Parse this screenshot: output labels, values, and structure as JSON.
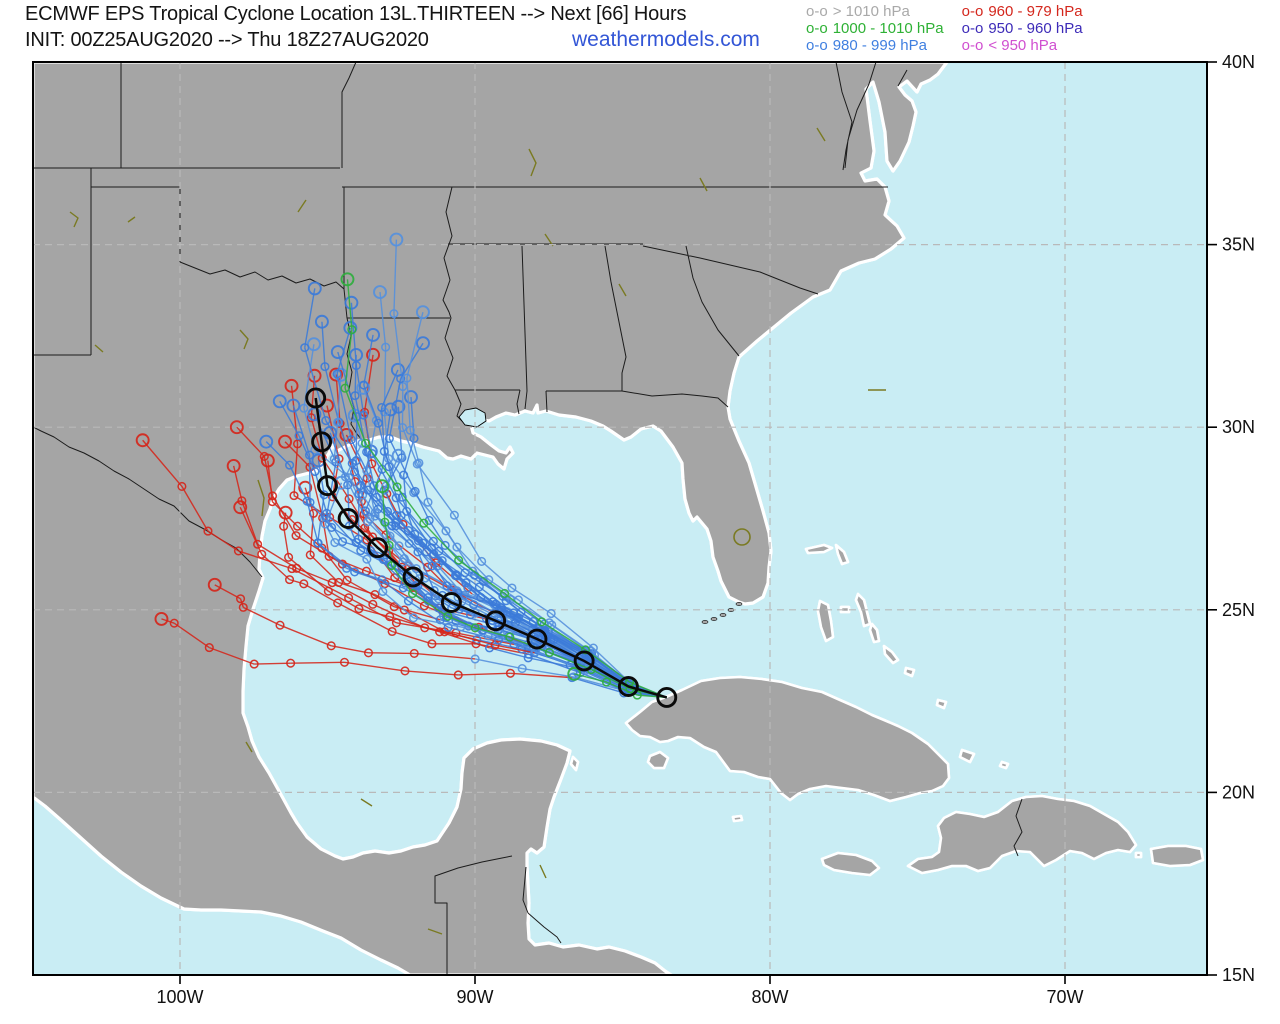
{
  "header": {
    "title": "ECMWF EPS Tropical Cyclone Location 13L.THIRTEEN --> Next [66] Hours",
    "init_line": "INIT: 00Z25AUG2020 --> Thu 18Z27AUG2020",
    "brand": "weathermodels.com"
  },
  "legend": {
    "items": [
      {
        "glyph": "o-o",
        "label": "> 1010 hPa",
        "color": "#a9a9a9"
      },
      {
        "glyph": "o-o",
        "label": "1000 - 1010 hPa",
        "color": "#2eb135"
      },
      {
        "glyph": "o-o",
        "label": "980 - 999 hPa",
        "color": "#3f7fe0"
      },
      {
        "glyph": "o-o",
        "label": "960 - 979 hPa",
        "color": "#d4271d"
      },
      {
        "glyph": "o-o",
        "label": "950 - 960 hPa",
        "color": "#3d2bb8"
      },
      {
        "glyph": "o-o",
        "label": "< 950 hPa",
        "color": "#d04fd0"
      }
    ]
  },
  "axes": {
    "lon_ticks": [
      {
        "label": "100W",
        "lon": -100
      },
      {
        "label": "90W",
        "lon": -90
      },
      {
        "label": "80W",
        "lon": -80
      },
      {
        "label": "70W",
        "lon": -70
      }
    ],
    "lat_ticks": [
      {
        "label": "40N",
        "lat": 40
      },
      {
        "label": "35N",
        "lat": 35
      },
      {
        "label": "30N",
        "lat": 30
      },
      {
        "label": "25N",
        "lat": 25
      },
      {
        "label": "20N",
        "lat": 20
      },
      {
        "label": "15N",
        "lat": 15
      }
    ]
  },
  "storm": {
    "name": "13L.THIRTEEN",
    "forecast_hours": 66,
    "mean_track": [
      [
        -83.5,
        22.6
      ],
      [
        -84.8,
        22.9
      ],
      [
        -86.3,
        23.6
      ],
      [
        -87.9,
        24.2
      ],
      [
        -89.3,
        24.7
      ],
      [
        -90.8,
        25.2
      ],
      [
        -92.1,
        25.9
      ],
      [
        -93.3,
        26.7
      ],
      [
        -94.3,
        27.5
      ],
      [
        -95.0,
        28.4
      ],
      [
        -95.2,
        29.6
      ],
      [
        -95.4,
        30.8
      ]
    ],
    "members": [
      {
        "c": "red",
        "e": [
          -101.0,
          29.4
        ],
        "t": 4,
        "s": 1
      },
      {
        "c": "red",
        "e": [
          -100.8,
          24.8
        ],
        "t": 3,
        "s": 2
      },
      {
        "c": "red",
        "e": [
          -98.9,
          26.0
        ],
        "t": 5,
        "s": 3
      },
      {
        "c": "red",
        "e": [
          -97.6,
          27.6
        ],
        "t": 4,
        "s": 4
      },
      {
        "c": "red",
        "e": [
          -98.4,
          28.8
        ],
        "t": 5,
        "s": 5
      },
      {
        "c": "red",
        "e": [
          -97.9,
          30.2
        ],
        "t": 4,
        "s": 6
      },
      {
        "c": "red",
        "e": [
          -97.0,
          29.2
        ],
        "t": 6,
        "s": 7
      },
      {
        "c": "red",
        "e": [
          -96.5,
          30.8
        ],
        "t": 5,
        "s": 8
      },
      {
        "c": "red",
        "e": [
          -96.0,
          29.6
        ],
        "t": 6,
        "s": 9
      },
      {
        "c": "red",
        "e": [
          -95.6,
          31.6
        ],
        "t": 5,
        "s": 10
      },
      {
        "c": "red",
        "e": [
          -95.0,
          30.5
        ],
        "t": 7,
        "s": 11
      },
      {
        "c": "red",
        "e": [
          -94.5,
          31.2
        ],
        "t": 6,
        "s": 12
      },
      {
        "c": "red",
        "e": [
          -96.8,
          27.9
        ],
        "t": 5,
        "s": 13
      },
      {
        "c": "red",
        "e": [
          -94.0,
          30.0
        ],
        "t": 7,
        "s": 14
      },
      {
        "c": "red",
        "e": [
          -93.5,
          31.8
        ],
        "t": 6,
        "s": 15
      },
      {
        "c": "red",
        "e": [
          -95.9,
          28.3
        ],
        "t": 4,
        "s": 16
      },
      {
        "c": "blue",
        "e": [
          -96.3,
          31.0
        ],
        "s": 17
      },
      {
        "c": "blue",
        "e": [
          -95.8,
          32.2
        ],
        "s": 18
      },
      {
        "c": "blue",
        "e": [
          -95.3,
          30.0
        ],
        "s": 19
      },
      {
        "c": "blue",
        "e": [
          -95.1,
          33.0
        ],
        "s": 20
      },
      {
        "c": "blue",
        "e": [
          -94.8,
          31.6
        ],
        "s": 21
      },
      {
        "c": "blue",
        "e": [
          -94.6,
          29.6
        ],
        "s": 22
      },
      {
        "c": "blue",
        "e": [
          -94.4,
          32.6
        ],
        "s": 23
      },
      {
        "c": "blue",
        "e": [
          -94.2,
          30.7
        ],
        "s": 24
      },
      {
        "c": "blue",
        "e": [
          -94.0,
          33.4
        ],
        "s": 25
      },
      {
        "c": "blue",
        "e": [
          -93.8,
          29.1
        ],
        "s": 26
      },
      {
        "c": "blue",
        "e": [
          -93.6,
          31.2
        ],
        "s": 27
      },
      {
        "c": "blue",
        "e": [
          -93.4,
          32.8
        ],
        "s": 28
      },
      {
        "c": "blue",
        "e": [
          -93.2,
          30.2
        ],
        "s": 29
      },
      {
        "c": "blue",
        "e": [
          -93.0,
          33.6
        ],
        "s": 30
      },
      {
        "c": "blue",
        "e": [
          -92.8,
          31.8
        ],
        "s": 31
      },
      {
        "c": "blue",
        "e": [
          -92.6,
          30.6
        ],
        "s": 32
      },
      {
        "c": "blue",
        "e": [
          -92.4,
          34.8
        ],
        "s": 33
      },
      {
        "c": "blue",
        "e": [
          -92.2,
          32.4
        ],
        "s": 34
      },
      {
        "c": "blue",
        "e": [
          -92.0,
          31.0
        ],
        "s": 35
      },
      {
        "c": "blue",
        "e": [
          -91.8,
          33.0
        ],
        "s": 36
      },
      {
        "c": "blue",
        "e": [
          -95.5,
          28.9
        ],
        "s": 37
      },
      {
        "c": "blue",
        "e": [
          -96.7,
          29.9
        ],
        "s": 38
      },
      {
        "c": "blue",
        "e": [
          -94.9,
          28.6
        ],
        "s": 39
      },
      {
        "c": "blue",
        "e": [
          -96.1,
          30.4
        ],
        "s": 40
      },
      {
        "c": "blue",
        "e": [
          -93.9,
          32.0
        ],
        "s": 41
      },
      {
        "c": "blue",
        "e": [
          -92.9,
          29.5
        ],
        "s": 42
      },
      {
        "c": "blue",
        "e": [
          -94.3,
          31.9
        ],
        "s": 43
      },
      {
        "c": "blue",
        "e": [
          -95.6,
          33.5
        ],
        "s": 44
      },
      {
        "c": "green",
        "e": [
          -94.4,
          34.2
        ],
        "s": 45
      },
      {
        "c": "green",
        "e": [
          -92.9,
          28.5
        ],
        "s": 46
      },
      {
        "c": "green",
        "e": [
          -86.5,
          24.0
        ],
        "s": 47,
        "n": 4
      }
    ]
  },
  "colors": {
    "water": "#c9edf4",
    "land": "#a5a5a5",
    "grid": "#b9b9b9",
    "blue": "#3c7bd9",
    "blue_alt": "#5590dd",
    "blue_rim": "#2457b8",
    "red": "#d5261b",
    "red_rim": "#b81d13",
    "green": "#2fae3e",
    "mean": "#0a0a0a",
    "brand": "#3356d6"
  }
}
